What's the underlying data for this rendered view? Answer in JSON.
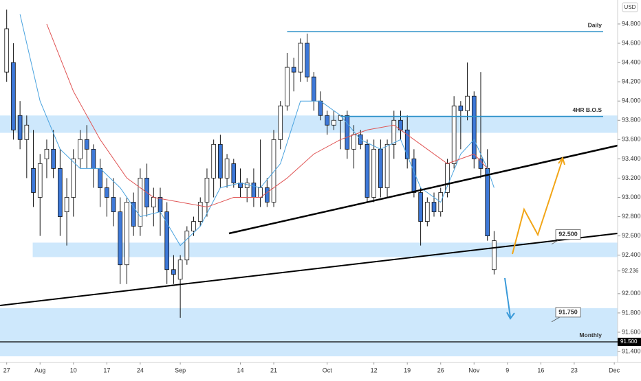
{
  "chart_data": {
    "type": "candlestick",
    "currency": "USD",
    "up_color": "#ffffff",
    "down_color": "#3d78d8",
    "xlim": [
      -1,
      91.5
    ],
    "ylim": [
      91.286,
      95.049
    ],
    "yticks": [
      {
        "value": 94.8,
        "label": "94.800"
      },
      {
        "value": 94.6,
        "label": "94.600"
      },
      {
        "value": 94.4,
        "label": "94.400"
      },
      {
        "value": 94.2,
        "label": "94.200"
      },
      {
        "value": 94.0,
        "label": "94.000"
      },
      {
        "value": 93.8,
        "label": "93.800"
      },
      {
        "value": 93.6,
        "label": "93.600"
      },
      {
        "value": 93.4,
        "label": "93.400"
      },
      {
        "value": 93.2,
        "label": "93.200"
      },
      {
        "value": 93.0,
        "label": "93.000"
      },
      {
        "value": 92.8,
        "label": "92.800"
      },
      {
        "value": 92.6,
        "label": "92.600"
      },
      {
        "value": 92.4,
        "label": "92.400"
      },
      {
        "value": 92.0,
        "label": "92.000"
      },
      {
        "value": 91.8,
        "label": "91.800"
      },
      {
        "value": 91.6,
        "label": "91.600"
      },
      {
        "value": 91.4,
        "label": "91.400"
      }
    ],
    "xticks": [
      {
        "value": 0,
        "label": "27"
      },
      {
        "value": 5,
        "label": "Aug"
      },
      {
        "value": 10,
        "label": "10"
      },
      {
        "value": 15,
        "label": "17"
      },
      {
        "value": 20,
        "label": "24"
      },
      {
        "value": 26,
        "label": "Sep"
      },
      {
        "value": 35,
        "label": "14"
      },
      {
        "value": 40,
        "label": "21"
      },
      {
        "value": 48,
        "label": "Oct"
      },
      {
        "value": 55,
        "label": "12"
      },
      {
        "value": 60,
        "label": "19"
      },
      {
        "value": 65,
        "label": "26"
      },
      {
        "value": 70,
        "label": "Nov"
      },
      {
        "value": 75,
        "label": "9"
      },
      {
        "value": 80,
        "label": "16"
      },
      {
        "value": 85,
        "label": "23"
      },
      {
        "value": 91,
        "label": "Dec"
      }
    ],
    "last_price": {
      "value": 92.236,
      "label": "92.236"
    },
    "levels": [
      {
        "name": "Daily",
        "value": 94.72,
        "from": 42
      },
      {
        "name": "4HR B.O.S",
        "value": 93.84,
        "from": 50
      },
      {
        "name": "Monthly",
        "value": 91.5,
        "label": "91.500",
        "from": -1
      }
    ],
    "zones": [
      [
        93.67,
        93.85
      ],
      [
        92.38,
        92.53
      ],
      [
        91.35,
        91.85
      ]
    ],
    "callouts": [
      {
        "label": "92.500",
        "value": 92.5
      },
      {
        "label": "91.750",
        "value": 91.75
      }
    ],
    "candles": [
      [
        94.3,
        94.95,
        94.2,
        94.75
      ],
      [
        94.4,
        94.6,
        93.6,
        93.7
      ],
      [
        93.85,
        94.0,
        93.5,
        93.6
      ],
      [
        93.6,
        93.85,
        93.2,
        93.75
      ],
      [
        93.3,
        93.7,
        92.9,
        93.05
      ],
      [
        93.0,
        93.45,
        92.6,
        93.35
      ],
      [
        93.4,
        93.6,
        93.2,
        93.5
      ],
      [
        93.5,
        93.7,
        93.2,
        93.3
      ],
      [
        93.3,
        93.5,
        92.6,
        92.8
      ],
      [
        92.85,
        93.2,
        92.5,
        93.0
      ],
      [
        93.0,
        93.5,
        92.8,
        93.4
      ],
      [
        93.4,
        93.7,
        93.3,
        93.6
      ],
      [
        93.6,
        93.75,
        93.3,
        93.5
      ],
      [
        93.5,
        93.55,
        93.1,
        93.3
      ],
      [
        93.3,
        93.4,
        92.9,
        93.1
      ],
      [
        93.1,
        93.2,
        92.8,
        93.0
      ],
      [
        93.0,
        93.2,
        92.7,
        92.85
      ],
      [
        92.85,
        93.0,
        92.1,
        92.3
      ],
      [
        92.3,
        93.0,
        92.1,
        92.95
      ],
      [
        92.95,
        93.05,
        92.6,
        92.7
      ],
      [
        92.7,
        93.3,
        92.6,
        93.2
      ],
      [
        93.2,
        93.35,
        92.8,
        92.9
      ],
      [
        92.9,
        93.1,
        92.7,
        93.0
      ],
      [
        93.0,
        93.1,
        92.6,
        92.85
      ],
      [
        92.85,
        92.95,
        92.1,
        92.25
      ],
      [
        92.25,
        92.4,
        92.1,
        92.2
      ],
      [
        92.15,
        92.4,
        91.75,
        92.35
      ],
      [
        92.35,
        92.7,
        92.3,
        92.65
      ],
      [
        92.65,
        92.8,
        92.6,
        92.75
      ],
      [
        92.75,
        93.0,
        92.7,
        92.95
      ],
      [
        92.95,
        93.3,
        92.8,
        93.2
      ],
      [
        93.2,
        93.6,
        93.0,
        93.55
      ],
      [
        93.55,
        93.65,
        93.1,
        93.2
      ],
      [
        93.2,
        93.45,
        93.1,
        93.4
      ],
      [
        93.35,
        93.4,
        93.1,
        93.15
      ],
      [
        93.15,
        93.3,
        93.0,
        93.1
      ],
      [
        93.1,
        93.2,
        92.95,
        93.15
      ],
      [
        93.15,
        93.3,
        92.9,
        93.0
      ],
      [
        93.0,
        93.6,
        92.9,
        93.1
      ],
      [
        93.1,
        93.2,
        92.9,
        92.95
      ],
      [
        92.95,
        93.7,
        92.9,
        93.6
      ],
      [
        93.6,
        94.0,
        93.5,
        93.95
      ],
      [
        93.95,
        94.5,
        93.9,
        94.35
      ],
      [
        94.35,
        94.45,
        94.1,
        94.3
      ],
      [
        94.3,
        94.65,
        94.2,
        94.6
      ],
      [
        94.6,
        94.7,
        94.2,
        94.25
      ],
      [
        94.25,
        94.3,
        93.9,
        94.0
      ],
      [
        94.0,
        94.1,
        93.8,
        93.85
      ],
      [
        93.85,
        93.9,
        93.65,
        93.75
      ],
      [
        93.75,
        93.9,
        93.7,
        93.8
      ],
      [
        93.8,
        93.85,
        93.5,
        93.85
      ],
      [
        93.85,
        93.9,
        93.4,
        93.5
      ],
      [
        93.5,
        93.75,
        93.3,
        93.65
      ],
      [
        93.65,
        93.7,
        93.5,
        93.55
      ],
      [
        93.55,
        93.6,
        92.95,
        93.0
      ],
      [
        93.0,
        93.6,
        92.95,
        93.5
      ],
      [
        93.5,
        93.6,
        93.0,
        93.1
      ],
      [
        93.1,
        93.6,
        93.0,
        93.55
      ],
      [
        93.55,
        93.9,
        93.4,
        93.8
      ],
      [
        93.8,
        93.9,
        93.6,
        93.7
      ],
      [
        93.7,
        93.85,
        93.3,
        93.4
      ],
      [
        93.4,
        93.5,
        93.0,
        93.05
      ],
      [
        93.05,
        93.1,
        92.5,
        92.75
      ],
      [
        92.75,
        93.0,
        92.7,
        92.95
      ],
      [
        92.95,
        93.05,
        92.8,
        92.85
      ],
      [
        92.85,
        93.1,
        92.8,
        93.05
      ],
      [
        93.05,
        93.4,
        93.0,
        93.35
      ],
      [
        93.35,
        94.05,
        93.3,
        93.95
      ],
      [
        93.95,
        94.0,
        93.5,
        93.9
      ],
      [
        93.9,
        94.4,
        93.8,
        94.05
      ],
      [
        94.05,
        94.1,
        93.3,
        93.4
      ],
      [
        93.4,
        94.3,
        93.2,
        93.3
      ],
      [
        93.3,
        93.5,
        92.55,
        92.6
      ],
      [
        92.25,
        92.65,
        92.2,
        92.55
      ]
    ],
    "ma": [
      {
        "color": "#4aa3df",
        "x": [
          2,
          5,
          8,
          11,
          14,
          17,
          20,
          23,
          26,
          29,
          32,
          35,
          38,
          41,
          44,
          47,
          50,
          53,
          56,
          59,
          62,
          65,
          68,
          70,
          72,
          73
        ],
        "values": [
          94.9,
          94.0,
          93.5,
          93.3,
          93.3,
          93.1,
          92.8,
          92.85,
          92.5,
          92.7,
          93.1,
          93.15,
          93.1,
          93.35,
          94.0,
          94.0,
          93.85,
          93.6,
          93.5,
          93.6,
          93.1,
          92.95,
          93.45,
          93.6,
          93.3,
          93.1
        ]
      },
      {
        "color": "#e05555",
        "x": [
          6,
          10,
          14,
          18,
          22,
          26,
          30,
          34,
          38,
          42,
          46,
          50,
          54,
          58,
          62,
          66,
          70,
          72
        ],
        "values": [
          94.8,
          94.1,
          93.6,
          93.2,
          93.0,
          92.95,
          92.9,
          93.0,
          93.0,
          93.2,
          93.45,
          93.6,
          93.7,
          93.75,
          93.55,
          93.35,
          93.45,
          93.3
        ]
      }
    ]
  }
}
